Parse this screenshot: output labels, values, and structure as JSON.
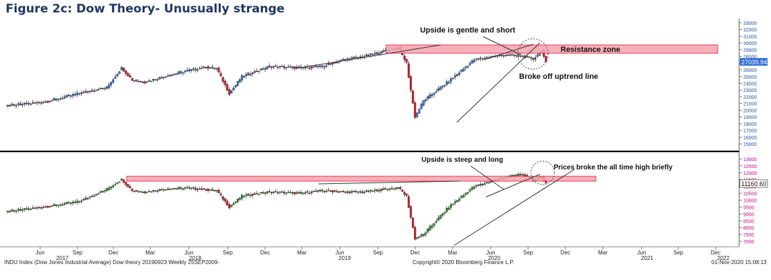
{
  "figure_title": "Figure 2c: Dow Theory- Unusually strange",
  "chart_data": [
    {
      "type": "candlestick",
      "name": "INDU Index (Dow Jones Industrial Average)",
      "ylim": [
        14500,
        33500
      ],
      "y_ticks": [
        15000,
        16000,
        17000,
        18000,
        19000,
        20000,
        21000,
        22000,
        23000,
        24000,
        25000,
        26000,
        27000,
        28000,
        29000,
        30000,
        31000,
        32000,
        33000
      ],
      "last_price_label": "27039.94",
      "approx_weekly_close_path": [
        [
          0,
          20650
        ],
        [
          18,
          21200
        ],
        [
          35,
          22500
        ],
        [
          48,
          23400
        ],
        [
          55,
          26300
        ],
        [
          60,
          24500
        ],
        [
          66,
          24200
        ],
        [
          75,
          25000
        ],
        [
          85,
          25800
        ],
        [
          95,
          26400
        ],
        [
          100,
          26200
        ],
        [
          106,
          22500
        ],
        [
          112,
          25000
        ],
        [
          125,
          26500
        ],
        [
          140,
          26300
        ],
        [
          150,
          26500
        ],
        [
          160,
          27500
        ],
        [
          170,
          28000
        ],
        [
          180,
          28800
        ],
        [
          186,
          29300
        ],
        [
          190,
          27000
        ],
        [
          194,
          19000
        ],
        [
          198,
          21400
        ],
        [
          210,
          24300
        ],
        [
          222,
          27500
        ],
        [
          235,
          28200
        ],
        [
          244,
          28100
        ],
        [
          250,
          27600
        ],
        [
          254,
          28900
        ],
        [
          256,
          27000
        ]
      ],
      "annotations": {
        "resistance_zone": "Resistance zone",
        "upside_note": "Upside is gentle and short",
        "breakdown_note": "Broke off uptrend line"
      }
    },
    {
      "type": "candlestick",
      "name": "Dow Theory companion index",
      "ylim": [
        6700,
        13300
      ],
      "y_ticks": [
        7000,
        7500,
        8000,
        8500,
        9000,
        9500,
        10000,
        10500,
        11000,
        11500,
        12000,
        12500,
        13000
      ],
      "last_price_label": "11160.60",
      "approx_weekly_close_path": [
        [
          0,
          9150
        ],
        [
          18,
          9500
        ],
        [
          35,
          9900
        ],
        [
          48,
          10800
        ],
        [
          55,
          11500
        ],
        [
          60,
          10700
        ],
        [
          66,
          10600
        ],
        [
          75,
          10800
        ],
        [
          85,
          10900
        ],
        [
          100,
          10700
        ],
        [
          106,
          9500
        ],
        [
          112,
          10300
        ],
        [
          125,
          10600
        ],
        [
          140,
          10500
        ],
        [
          150,
          10700
        ],
        [
          160,
          10600
        ],
        [
          170,
          10600
        ],
        [
          180,
          10800
        ],
        [
          186,
          10900
        ],
        [
          190,
          10300
        ],
        [
          194,
          7200
        ],
        [
          198,
          7500
        ],
        [
          210,
          9500
        ],
        [
          222,
          11000
        ],
        [
          235,
          11600
        ],
        [
          244,
          11900
        ],
        [
          250,
          11500
        ],
        [
          254,
          11700
        ],
        [
          256,
          11160
        ]
      ],
      "annotations": {
        "upside_note": "Upside is steep and long",
        "breakout_note": "Prices broke the all time high briefly"
      }
    }
  ],
  "x_axis": {
    "months": [
      "Jun",
      "Sep",
      "Dec",
      "Mar",
      "Jun",
      "Sep",
      "Dec",
      "Mar",
      "Jun",
      "Sep",
      "Dec",
      "Mar",
      "Jun",
      "Sep",
      "Dec",
      "Mar",
      "Jun",
      "Sep",
      "Dec"
    ],
    "years": [
      "2017",
      "2018",
      "2019",
      "2020",
      "2021",
      "2022"
    ]
  },
  "footer": {
    "left": "INDU Index (Dow Jones Industrial Average) Dow theory 20190923  Weekly 25SEP2009-",
    "center": "Copyright© 2020 Bloomberg Finance L.P.",
    "right": "01-Nov-2020 15:08:13"
  },
  "colors": {
    "up_candle": "#3b7dd8",
    "down_candle": "#e0192a",
    "up_candle_lower": "#2e9e2e",
    "down_candle_lower": "#e0192a",
    "zone_fill": "#f5a3ae",
    "zone_border": "#e0192a",
    "title": "#1f3864",
    "upper_axis": "#1f4e9e",
    "lower_axis": "#c8008c",
    "last_price_box": "#2f6fd6"
  }
}
